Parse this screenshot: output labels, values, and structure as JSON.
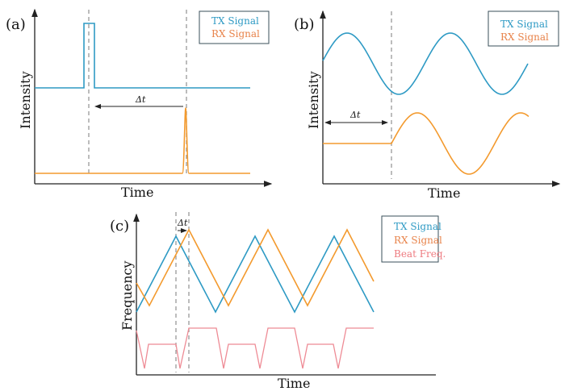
{
  "colors": {
    "tx": "#2e9ac4",
    "rx": "#f39a2e",
    "rx_legend": "#e8834a",
    "beat": "#ee8b95"
  },
  "panel_a": {
    "label": "(a)",
    "xlabel": "Time",
    "ylabel": "Intensity",
    "delta": "Δt",
    "legend": [
      "TX Signal",
      "RX Signal"
    ]
  },
  "panel_b": {
    "label": "(b)",
    "xlabel": "Time",
    "ylabel": "Intensity",
    "delta": "Δt",
    "legend": [
      "TX Signal",
      "RX Signal"
    ]
  },
  "panel_c": {
    "label": "(c)",
    "xlabel": "Time",
    "ylabel": "Frequency",
    "delta": "Δt",
    "legend": [
      "TX Signal",
      "RX Signal",
      "Beat Freq."
    ]
  }
}
